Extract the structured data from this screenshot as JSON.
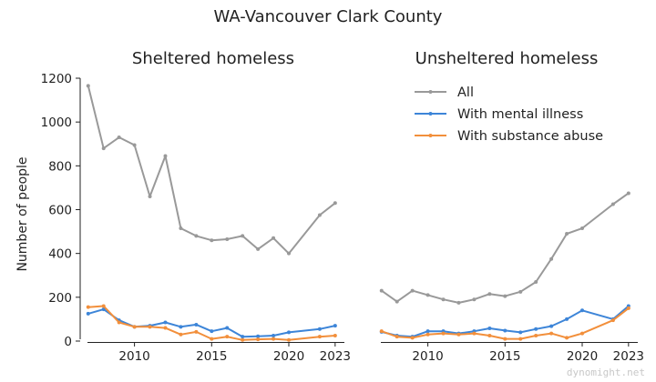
{
  "suptitle": "WA-Vancouver Clark County",
  "watermark": "dynomight.net",
  "chart_data": [
    {
      "type": "line",
      "title": "Sheltered homeless",
      "ylabel": "Number of people",
      "xlim": [
        2006.6,
        2023.6
      ],
      "ylim": [
        0,
        1200
      ],
      "xticks": [
        2010,
        2015,
        2020,
        2023
      ],
      "yticks": [
        0,
        200,
        400,
        600,
        800,
        1000,
        1200
      ],
      "grid": false,
      "series": [
        {
          "name": "All",
          "color": "#999999",
          "x": [
            2007,
            2008,
            2009,
            2010,
            2011,
            2012,
            2013,
            2014,
            2015,
            2016,
            2017,
            2018,
            2019,
            2020,
            2022,
            2023
          ],
          "y": [
            1165,
            880,
            930,
            895,
            660,
            845,
            515,
            480,
            460,
            465,
            480,
            420,
            470,
            400,
            575,
            630
          ]
        },
        {
          "name": "With mental illness",
          "color": "#3d85d8",
          "x": [
            2007,
            2008,
            2009,
            2010,
            2011,
            2012,
            2013,
            2014,
            2015,
            2016,
            2017,
            2018,
            2019,
            2020,
            2022,
            2023
          ],
          "y": [
            125,
            145,
            95,
            65,
            70,
            85,
            65,
            75,
            45,
            60,
            20,
            22,
            25,
            40,
            55,
            70
          ]
        },
        {
          "name": "With substance abuse",
          "color": "#f28f3b",
          "x": [
            2007,
            2008,
            2009,
            2010,
            2011,
            2012,
            2013,
            2014,
            2015,
            2016,
            2017,
            2018,
            2019,
            2020,
            2022,
            2023
          ],
          "y": [
            155,
            160,
            85,
            65,
            65,
            60,
            30,
            42,
            10,
            20,
            5,
            8,
            10,
            5,
            20,
            25
          ]
        }
      ]
    },
    {
      "type": "line",
      "title": "Unsheltered homeless",
      "ylabel": "",
      "xlim": [
        2006.6,
        2023.6
      ],
      "ylim": [
        0,
        1200
      ],
      "xticks": [
        2010,
        2015,
        2020,
        2023
      ],
      "yticks": [],
      "grid": false,
      "legend": "upper-center",
      "series": [
        {
          "name": "All",
          "color": "#999999",
          "x": [
            2007,
            2008,
            2009,
            2010,
            2011,
            2012,
            2013,
            2014,
            2015,
            2016,
            2017,
            2018,
            2019,
            2020,
            2022,
            2023
          ],
          "y": [
            230,
            180,
            230,
            210,
            190,
            175,
            190,
            215,
            205,
            225,
            270,
            375,
            490,
            515,
            625,
            675
          ]
        },
        {
          "name": "With mental illness",
          "color": "#3d85d8",
          "x": [
            2007,
            2008,
            2009,
            2010,
            2011,
            2012,
            2013,
            2014,
            2015,
            2016,
            2017,
            2018,
            2019,
            2020,
            2022,
            2023
          ],
          "y": [
            42,
            25,
            20,
            45,
            45,
            35,
            45,
            58,
            48,
            40,
            55,
            68,
            100,
            140,
            100,
            160
          ]
        },
        {
          "name": "With substance abuse",
          "color": "#f28f3b",
          "x": [
            2007,
            2008,
            2009,
            2010,
            2011,
            2012,
            2013,
            2014,
            2015,
            2016,
            2017,
            2018,
            2019,
            2020,
            2022,
            2023
          ],
          "y": [
            45,
            20,
            15,
            30,
            35,
            30,
            35,
            25,
            10,
            10,
            25,
            35,
            15,
            35,
            95,
            150
          ]
        }
      ]
    }
  ]
}
